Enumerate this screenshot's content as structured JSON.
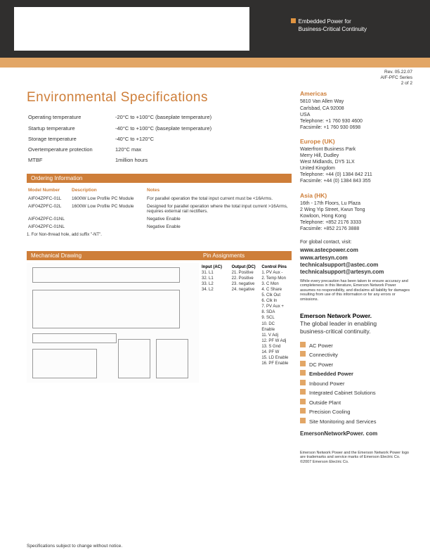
{
  "header": {
    "tagline1": "Embedded Power for",
    "tagline2": "Business-Critical Continuity"
  },
  "rev": {
    "l1": "Rev. 05.22.07",
    "l2": "AIF-PFC Series",
    "l3": "2 of 2"
  },
  "title": "Environmental Specifications",
  "specs": [
    {
      "k": "Operating temperature",
      "v": "-20°C to +100°C (baseplate temperature)"
    },
    {
      "k": "Startup temperature",
      "v": "-40°C to +100°C (baseplate temperature)"
    },
    {
      "k": "Storage temperature",
      "v": "-40°C to +120°C"
    },
    {
      "k": "Overtemperature protection",
      "v": "120°C max"
    },
    {
      "k": "MTBF",
      "v": "1million hours"
    }
  ],
  "ordering": {
    "hdr": "Ordering Information",
    "cols": [
      "Model Number",
      "Description",
      "Notes"
    ],
    "rows": [
      [
        "AIF04ZPFC-01L",
        "1600W Low Profile PC Module",
        "For parallel operation the total input current must be <16Arms."
      ],
      [
        "AIF04ZPFC-02L",
        "1600W Low Profile PC Module",
        "Designed for parallel operation where the total input current >16Arms, requires external rail rectifiers."
      ],
      [
        "AIF04ZPFC-01NL",
        "",
        "Negative Enable"
      ],
      [
        "AIF04ZPFC-01NL",
        "",
        "Negative Enable"
      ]
    ],
    "foot": "1. For Non-thread hole, add suffix \"-NT\"."
  },
  "mech": {
    "hdr": "Mechanical Drawing"
  },
  "pins": {
    "hdr": "Pin Assignments",
    "h": [
      "Input (AC)",
      "Output (DC)",
      "Control Pins"
    ],
    "c1": [
      "31. L1",
      "32. L1",
      "33. L2",
      "34. L2"
    ],
    "c2": [
      "21. Positive",
      "22. Positive",
      "23. negative",
      "24. negative"
    ],
    "c3": [
      "1. PV Aux -",
      "2. Temp Mon",
      "3. C Mon",
      "4. C Share",
      "5. Clk Out",
      "6. Clk In",
      "7. PV Aux +",
      "8. SDA",
      "9. SCL",
      "10. DC Enable",
      "11. V Adj",
      "12. PF W Adj",
      "13. S Gnd",
      "14. PF W",
      "15. LD Enable",
      "16. PF Enable"
    ]
  },
  "addr": {
    "americas": {
      "hd": "Americas",
      "lines": [
        "5810 Van Allen Way",
        "Carlsbad, CA 92008",
        "USA",
        "Telephone: +1 760 930 4600",
        "Facsimile:   +1 760 930 0698"
      ]
    },
    "europe": {
      "hd": "Europe (UK)",
      "lines": [
        "Waterfront Business Park",
        "Merry Hill, Dudley",
        "West Midlands, DY5 1LX",
        "United Kingdom",
        "Telephone: +44 (0) 1384 842 211",
        "Facsimile:   +44 (0) 1384 843 355"
      ]
    },
    "asia": {
      "hd": "Asia (HK)",
      "lines": [
        "16th - 17th Floors, Lu Plaza",
        "2 Wing Yip Street, Kwun Tong",
        "Kowloon, Hong Kong",
        "Telephone: +852 2176 3333",
        "Facsimile:   +852 2176 3888"
      ]
    }
  },
  "contact": {
    "lead": "For global contact, visit:",
    "links": [
      "www.astecpower.com",
      "www.artesyn.com",
      "technicalsupport@astec.com",
      "technicalsupport@artesyn.com"
    ]
  },
  "disclaimer": "While every precaution has been taken to ensure accuracy and completeness in this literature, Emerson Network Power assumes no responsibility, and disclaims all liability for damages resulting from use of this information or for any errors or omissions.",
  "enp": {
    "l1": "Emerson Network Power.",
    "l2": "The global leader in enabling",
    "l3": "business-critical continuity."
  },
  "services": [
    "AC Power",
    "Connectivity",
    "DC Power",
    "Embedded Power",
    "Inbound Power",
    "Integrated Cabinet Solutions",
    "Outside Plant",
    "Precision Cooling",
    "Site Monitoring and Services"
  ],
  "site": "EmersonNetworkPower. com",
  "legal": "Emerson Network Power and the Emerson Network Power logo are trademarks and service marks of Emerson Electric Co. ©2007 Emerson Electric Co.",
  "bottom": "Specifications subject to change without notice."
}
